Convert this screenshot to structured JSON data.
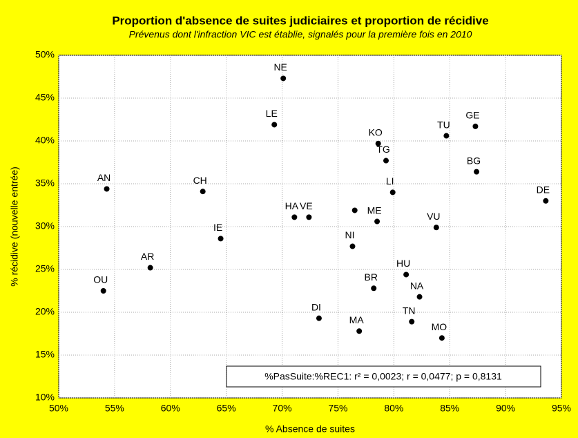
{
  "chart_data": {
    "type": "scatter",
    "title": "Proportion d'absence de suites judiciaires et proportion de récidive",
    "subtitle": "Prévenus dont l'infraction VIC est établie, signalés pour la première fois en 2010",
    "x_label": "% Absence de suites",
    "y_label": "% récidive (nouvelle entrée)",
    "annotation": "%PasSuite:%REC1:  r² = 0,0023;  r = 0,0477;  p = 0,8131",
    "labels": [
      "NE",
      "LE",
      "KO",
      "TG",
      "TU",
      "GE",
      "BG",
      "DE",
      "LI",
      "AN",
      "CH",
      "HA",
      "VE",
      null,
      "ME",
      "VU",
      "IE",
      "NI",
      "AR",
      "OU",
      "HU",
      "BR",
      "NA",
      "DI",
      "TN",
      "MA",
      "MO"
    ],
    "x": [
      70.1,
      69.3,
      78.6,
      79.3,
      84.7,
      87.3,
      87.4,
      93.6,
      79.9,
      54.3,
      62.9,
      71.1,
      72.4,
      76.5,
      78.5,
      83.8,
      64.5,
      76.3,
      58.2,
      54.0,
      81.1,
      78.2,
      82.3,
      73.3,
      81.6,
      76.9,
      84.3
    ],
    "values": [
      47.3,
      41.9,
      39.7,
      37.7,
      40.6,
      41.7,
      36.4,
      33.0,
      34.0,
      34.4,
      34.1,
      31.1,
      31.1,
      31.9,
      30.6,
      29.9,
      28.6,
      27.7,
      25.2,
      22.5,
      24.4,
      22.8,
      21.8,
      19.3,
      18.9,
      17.8,
      17.0
    ],
    "color": "#000000",
    "xlim": [
      50,
      95
    ],
    "ylim": [
      10,
      50
    ],
    "xticks": [
      {
        "value": 50,
        "label": "50%"
      },
      {
        "value": 55,
        "label": "55%"
      },
      {
        "value": 60,
        "label": "60%"
      },
      {
        "value": 65,
        "label": "65%"
      },
      {
        "value": 70,
        "label": "70%"
      },
      {
        "value": 75,
        "label": "75%"
      },
      {
        "value": 80,
        "label": "80%"
      },
      {
        "value": 85,
        "label": "85%"
      },
      {
        "value": 90,
        "label": "90%"
      },
      {
        "value": 95,
        "label": "95%"
      }
    ],
    "yticks": [
      {
        "value": 10,
        "label": "10%"
      },
      {
        "value": 15,
        "label": "15%"
      },
      {
        "value": 20,
        "label": "20%"
      },
      {
        "value": 25,
        "label": "25%"
      },
      {
        "value": 30,
        "label": "30%"
      },
      {
        "value": 35,
        "label": "35%"
      },
      {
        "value": 40,
        "label": "40%"
      },
      {
        "value": 45,
        "label": "45%"
      },
      {
        "value": 50,
        "label": "50%"
      }
    ],
    "grid": true
  }
}
